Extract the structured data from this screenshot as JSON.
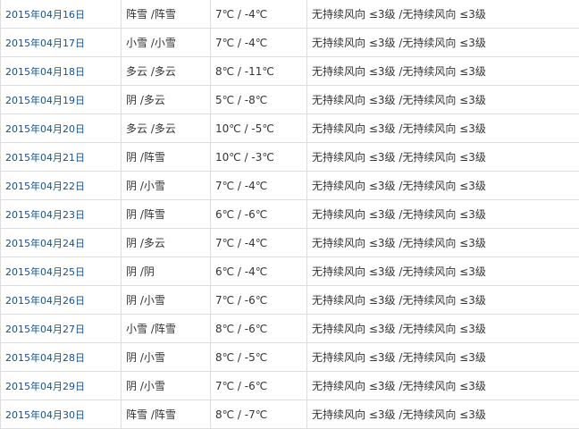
{
  "rows": [
    {
      "date": "2015年04月16日",
      "weather": "阵雪 /阵雪",
      "temp": "7℃ / -4℃",
      "wind": "无持续风向 ≤3级 /无持续风向 ≤3级"
    },
    {
      "date": "2015年04月17日",
      "weather": "小雪 /小雪",
      "temp": "7℃ / -4℃",
      "wind": "无持续风向 ≤3级 /无持续风向 ≤3级"
    },
    {
      "date": "2015年04月18日",
      "weather": "多云 /多云",
      "temp": "8℃ / -11℃",
      "wind": "无持续风向 ≤3级 /无持续风向 ≤3级"
    },
    {
      "date": "2015年04月19日",
      "weather": "阴 /多云",
      "temp": "5℃ / -8℃",
      "wind": "无持续风向 ≤3级 /无持续风向 ≤3级"
    },
    {
      "date": "2015年04月20日",
      "weather": "多云 /多云",
      "temp": "10℃ / -5℃",
      "wind": "无持续风向 ≤3级 /无持续风向 ≤3级"
    },
    {
      "date": "2015年04月21日",
      "weather": "阴 /阵雪",
      "temp": "10℃ / -3℃",
      "wind": "无持续风向 ≤3级 /无持续风向 ≤3级"
    },
    {
      "date": "2015年04月22日",
      "weather": "阴 /小雪",
      "temp": "7℃ / -4℃",
      "wind": "无持续风向 ≤3级 /无持续风向 ≤3级"
    },
    {
      "date": "2015年04月23日",
      "weather": "阴 /阵雪",
      "temp": "6℃ / -6℃",
      "wind": "无持续风向 ≤3级 /无持续风向 ≤3级"
    },
    {
      "date": "2015年04月24日",
      "weather": "阴 /多云",
      "temp": "7℃ / -4℃",
      "wind": "无持续风向 ≤3级 /无持续风向 ≤3级"
    },
    {
      "date": "2015年04月25日",
      "weather": "阴 /阴",
      "temp": "6℃ / -4℃",
      "wind": "无持续风向 ≤3级 /无持续风向 ≤3级"
    },
    {
      "date": "2015年04月26日",
      "weather": "阴 /小雪",
      "temp": "7℃ / -6℃",
      "wind": "无持续风向 ≤3级 /无持续风向 ≤3级"
    },
    {
      "date": "2015年04月27日",
      "weather": "小雪 /阵雪",
      "temp": "8℃ / -6℃",
      "wind": "无持续风向 ≤3级 /无持续风向 ≤3级"
    },
    {
      "date": "2015年04月28日",
      "weather": "阴 /小雪",
      "temp": "8℃ / -5℃",
      "wind": "无持续风向 ≤3级 /无持续风向 ≤3级"
    },
    {
      "date": "2015年04月29日",
      "weather": "阴 /小雪",
      "temp": "7℃ / -6℃",
      "wind": "无持续风向 ≤3级 /无持续风向 ≤3级"
    },
    {
      "date": "2015年04月30日",
      "weather": "阵雪 /阵雪",
      "temp": "8℃ / -7℃",
      "wind": "无持续风向 ≤3级 /无持续风向 ≤3级"
    }
  ]
}
